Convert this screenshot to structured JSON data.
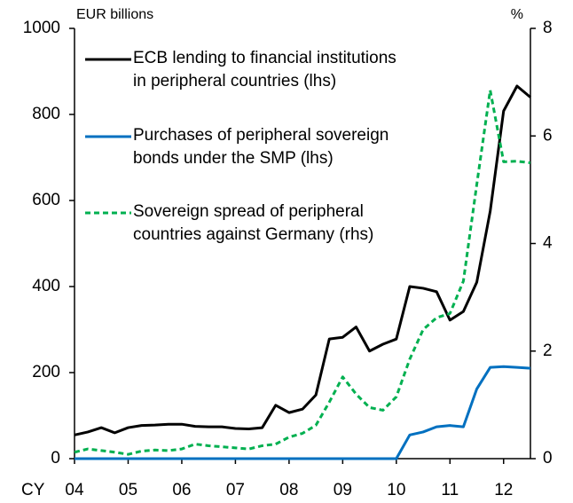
{
  "chart_data": {
    "type": "line",
    "y_label": "EUR billions",
    "y2_label": "%",
    "x_label": "CY",
    "legend": "upper left",
    "grid": false,
    "x": [
      2004,
      2004.25,
      2004.5,
      2004.75,
      2005,
      2005.25,
      2005.5,
      2005.75,
      2006,
      2006.25,
      2006.5,
      2006.75,
      2007,
      2007.25,
      2007.5,
      2007.75,
      2008,
      2008.25,
      2008.5,
      2008.75,
      2009,
      2009.25,
      2009.5,
      2009.75,
      2010,
      2010.25,
      2010.5,
      2010.75,
      2011,
      2011.25,
      2011.5,
      2011.75,
      2012,
      2012.25,
      2012.5
    ],
    "xlim": [
      2004,
      2012.5
    ],
    "xticks": [
      {
        "value": 2004,
        "label": "04"
      },
      {
        "value": 2005,
        "label": "05"
      },
      {
        "value": 2006,
        "label": "06"
      },
      {
        "value": 2007,
        "label": "07"
      },
      {
        "value": 2008,
        "label": "08"
      },
      {
        "value": 2009,
        "label": "09"
      },
      {
        "value": 2010,
        "label": "10"
      },
      {
        "value": 2011,
        "label": "11"
      },
      {
        "value": 2012,
        "label": "12"
      }
    ],
    "ylim": [
      0,
      1000
    ],
    "yticks": [
      0,
      200,
      400,
      600,
      800,
      1000
    ],
    "y2lim": [
      0,
      8
    ],
    "y2ticks": [
      0,
      2,
      4,
      6,
      8
    ],
    "series": [
      {
        "name": "ECB lending to financial institutions in peripheral countries (lhs)",
        "color": "#000000",
        "style": "solid",
        "values": [
          55,
          62,
          72,
          60,
          72,
          77,
          78,
          80,
          80,
          75,
          74,
          74,
          70,
          69,
          72,
          124,
          107,
          115,
          148,
          278,
          282,
          306,
          250,
          266,
          278,
          400,
          396,
          388,
          322,
          342,
          410,
          575,
          808,
          866,
          840
        ]
      },
      {
        "name": "Purchases of peripheral sovereign bonds under the SMP (lhs)",
        "color": "#0070c0",
        "style": "solid",
        "values": [
          0,
          0,
          0,
          0,
          0,
          0,
          0,
          0,
          0,
          0,
          0,
          0,
          0,
          0,
          0,
          0,
          0,
          0,
          0,
          0,
          0,
          0,
          0,
          0,
          0,
          55,
          62,
          74,
          77,
          74,
          162,
          212,
          214,
          212,
          210
        ]
      },
      {
        "name": "Sovereign spread of peripheral countries against Germany (rhs)",
        "color": "#00b050",
        "style": "dashed",
        "axis": "y2",
        "values": [
          0.12,
          0.18,
          0.15,
          0.12,
          0.08,
          0.14,
          0.16,
          0.15,
          0.18,
          0.27,
          0.24,
          0.22,
          0.2,
          0.18,
          0.24,
          0.27,
          0.4,
          0.47,
          0.62,
          1.05,
          1.52,
          1.2,
          0.95,
          0.9,
          1.15,
          1.85,
          2.4,
          2.62,
          2.7,
          3.3,
          5.1,
          6.85,
          5.52,
          5.53,
          5.5
        ]
      }
    ]
  }
}
